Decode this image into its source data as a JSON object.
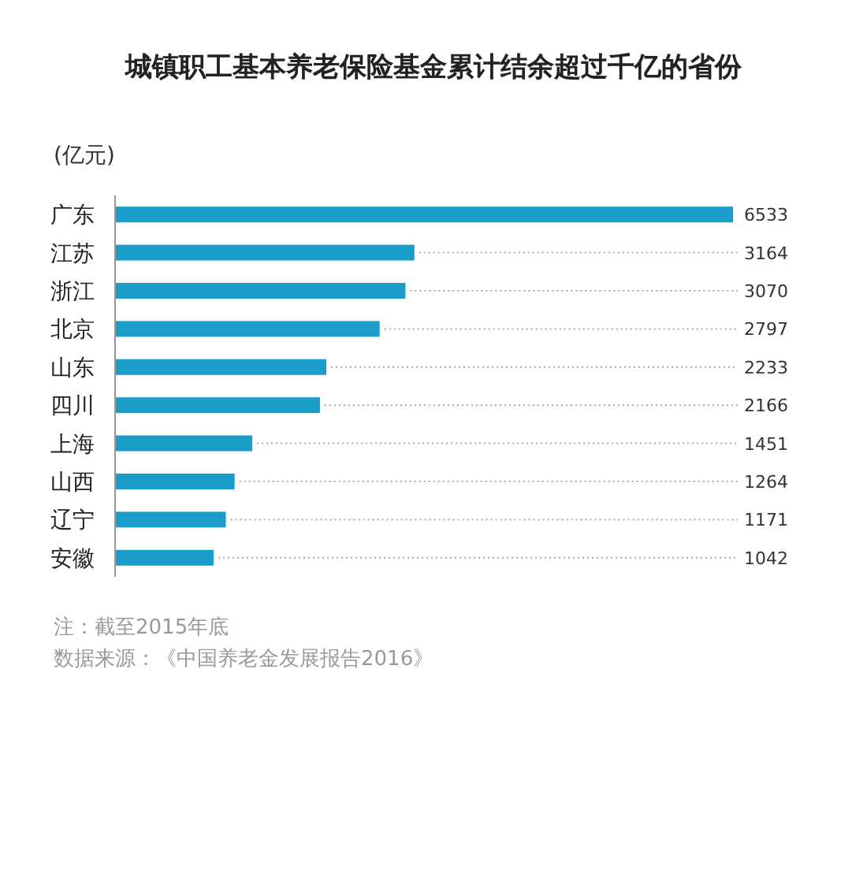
{
  "chart_data": {
    "type": "bar",
    "orientation": "horizontal",
    "title": "城镇职工基本养老保险基金累计结余超过千亿的省份",
    "subtitle": "(亿元)",
    "categories": [
      "广东",
      "江苏",
      "浙江",
      "北京",
      "山东",
      "四川",
      "上海",
      "山西",
      "辽宁",
      "安徽"
    ],
    "values": [
      6533,
      3164,
      3070,
      2797,
      2233,
      2166,
      1451,
      1264,
      1171,
      1042
    ],
    "color": "#1b9dc9",
    "data_labels": true,
    "annotations": [
      "注：截至2015年底",
      "数据来源：《中国养老金发展报告2016》"
    ]
  }
}
